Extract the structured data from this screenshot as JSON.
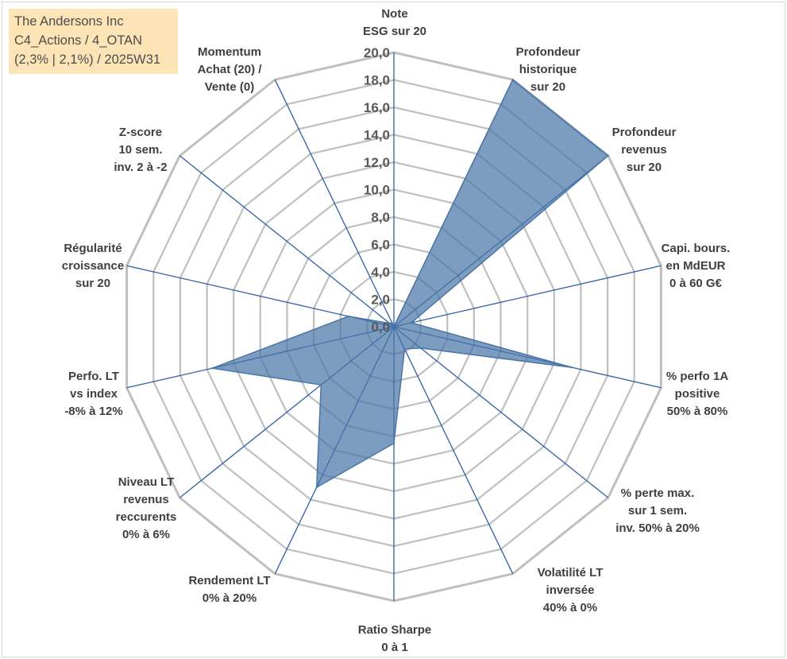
{
  "header": {
    "lines": [
      "The Andersons Inc",
      "C4_Actions / 4_OTAN",
      "(2,3% | 2,1%) / 2025W31"
    ],
    "background_color": "#fce4b6"
  },
  "chart_data": {
    "type": "radar",
    "title": "",
    "range": [
      0,
      20
    ],
    "tick_step": 2,
    "tick_labels": [
      "0,0",
      "2,0",
      "4,0",
      "6,0",
      "8,0",
      "10,0",
      "12,0",
      "14,0",
      "16,0",
      "18,0",
      "20,0"
    ],
    "grid": true,
    "axes": [
      {
        "lines": [
          "Note",
          "ESG sur 20"
        ]
      },
      {
        "lines": [
          "Profondeur",
          "historique",
          "sur 20"
        ]
      },
      {
        "lines": [
          "Profondeur",
          "revenus",
          "sur 20"
        ]
      },
      {
        "lines": [
          "Capi. bours.",
          "en MdEUR",
          "0 à 60 G€"
        ]
      },
      {
        "lines": [
          "% perfo 1A",
          "positive",
          "50% à 80%"
        ]
      },
      {
        "lines": [
          "% perte max.",
          "sur 1 sem.",
          "inv. 50% à 20%"
        ]
      },
      {
        "lines": [
          "Volatilité LT",
          "inversée",
          "40% à 0%"
        ]
      },
      {
        "lines": [
          "Ratio Sharpe",
          "0 à 1"
        ]
      },
      {
        "lines": [
          "Rendement LT",
          "0% à 20%"
        ]
      },
      {
        "lines": [
          "Niveau LT",
          "revenus",
          "reccurents",
          "0% à 6%"
        ]
      },
      {
        "lines": [
          "Perfo. LT",
          "vs index",
          "-8% à 12%"
        ]
      },
      {
        "lines": [
          "Régularité",
          "croissance",
          "sur 20"
        ]
      },
      {
        "lines": [
          "Z-score",
          "10 sem.",
          "inv. 2 à -2"
        ]
      },
      {
        "lines": [
          "Momentum",
          "Achat (20) /",
          "Vente (0)"
        ]
      }
    ],
    "series": [
      {
        "values": [
          0,
          20,
          20,
          1.3,
          13.3,
          2.5,
          1.8,
          8.5,
          13.0,
          6.8,
          13.6,
          3.4,
          0.4,
          0.3
        ],
        "color": "#4a76a8"
      }
    ],
    "colors": {
      "grid": "#bfbfbf",
      "spoke": "#2f5ea8",
      "fill": "#4a76a8"
    }
  }
}
